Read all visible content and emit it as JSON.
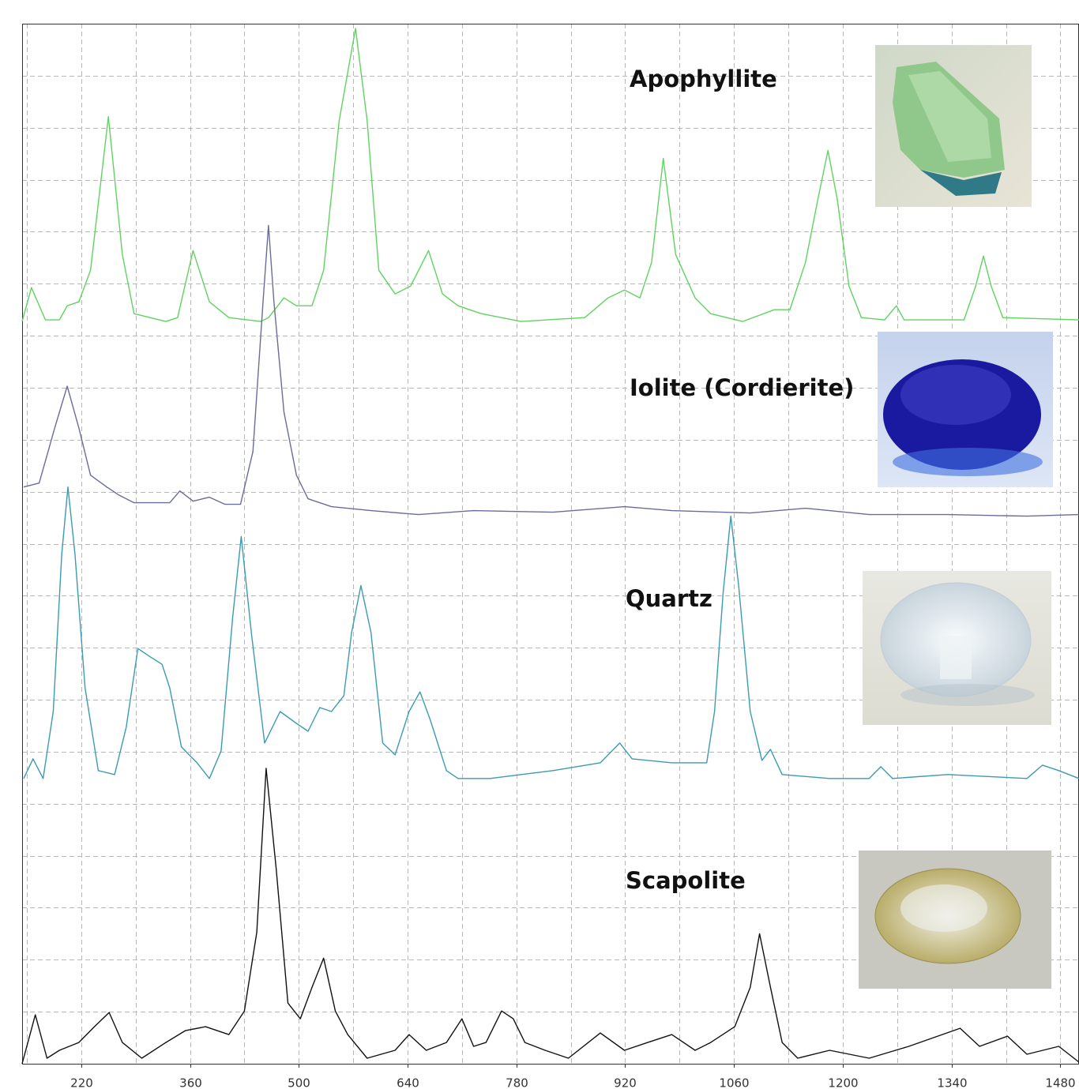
{
  "chart_data": {
    "type": "line",
    "xlim": [
      144,
      1504
    ],
    "xticks": [
      220,
      360,
      500,
      640,
      780,
      920,
      1060,
      1200,
      1340,
      1480
    ],
    "xminor": [
      150,
      290,
      430,
      570,
      710,
      850,
      990,
      1130,
      1270,
      1410
    ],
    "ylim": [
      0,
      1320
    ],
    "yticks": [
      0,
      66,
      132,
      198,
      264,
      330,
      396,
      462,
      528,
      594,
      660,
      726,
      792,
      858,
      924,
      990,
      1056,
      1122,
      1188,
      1254,
      1320
    ],
    "grid": true,
    "series": [
      {
        "name": "Apophyllite",
        "color": "#5fd35f",
        "x": [
          144,
          156,
          174,
          192,
          202,
          217,
          232,
          255,
          273,
          288,
          329,
          344,
          364,
          385,
          410,
          451,
          461,
          481,
          497,
          517,
          532,
          552,
          573,
          588,
          603,
          624,
          644,
          667,
          685,
          705,
          735,
          786,
          868,
          898,
          919,
          939,
          954,
          969,
          985,
          1010,
          1030,
          1071,
          1112,
          1132,
          1152,
          1168,
          1181,
          1193,
          1208,
          1224,
          1254,
          1269,
          1279,
          1356,
          1371,
          1381,
          1391,
          1406,
          1504
        ],
        "values": [
          942,
          985,
          944,
          944,
          962,
          967,
          1007,
          1202,
          1027,
          952,
          942,
          947,
          1032,
          967,
          947,
          942,
          947,
          972,
          962,
          962,
          1007,
          1197,
          1314,
          1197,
          1007,
          977,
          987,
          1032,
          977,
          962,
          952,
          942,
          947,
          972,
          982,
          972,
          1017,
          1149,
          1027,
          972,
          952,
          942,
          957,
          957,
          1017,
          1097,
          1159,
          1097,
          987,
          947,
          944,
          962,
          944,
          944,
          987,
          1025,
          987,
          947,
          944
        ]
      },
      {
        "name": "Iolite (Cordierite)",
        "color": "#6b6b9c",
        "x": [
          146,
          166,
          186,
          202,
          217,
          232,
          253,
          268,
          288,
          334,
          347,
          364,
          385,
          405,
          425,
          441,
          454,
          461,
          468,
          481,
          497,
          512,
          542,
          593,
          654,
          725,
          827,
          919,
          980,
          1081,
          1152,
          1234,
          1335,
          1437,
          1504
        ],
        "values": [
          732,
          737,
          807,
          860,
          807,
          747,
          732,
          722,
          712,
          712,
          727,
          714,
          719,
          710,
          710,
          777,
          967,
          1064,
          967,
          827,
          747,
          717,
          707,
          702,
          697,
          702,
          700,
          707,
          702,
          699,
          705,
          697,
          697,
          695,
          697
        ]
      },
      {
        "name": "Quartz",
        "color": "#3b9bb0",
        "x": [
          146,
          158,
          171,
          184,
          195,
          203,
          212,
          225,
          242,
          263,
          278,
          293,
          308,
          324,
          334,
          349,
          369,
          385,
          400,
          415,
          426,
          439,
          456,
          476,
          497,
          512,
          527,
          542,
          558,
          568,
          580,
          593,
          608,
          624,
          642,
          656,
          669,
          690,
          705,
          746,
          827,
          888,
          913,
          929,
          980,
          1025,
          1035,
          1046,
          1056,
          1066,
          1081,
          1096,
          1107,
          1122,
          1183,
          1234,
          1249,
          1264,
          1335,
          1437,
          1457,
          1478,
          1504
        ],
        "values": [
          362,
          387,
          362,
          447,
          647,
          732,
          647,
          477,
          372,
          367,
          427,
          527,
          517,
          507,
          477,
          402,
          382,
          362,
          397,
          567,
          669,
          547,
          407,
          447,
          432,
          422,
          452,
          447,
          467,
          547,
          607,
          547,
          407,
          392,
          447,
          472,
          437,
          372,
          362,
          362,
          372,
          382,
          407,
          387,
          382,
          382,
          447,
          597,
          695,
          607,
          447,
          385,
          399,
          367,
          362,
          362,
          377,
          362,
          367,
          362,
          379,
          372,
          362
        ]
      },
      {
        "name": "Scapolite",
        "color": "#111111",
        "x": [
          144,
          161,
          176,
          192,
          217,
          237,
          256,
          273,
          298,
          329,
          354,
          380,
          410,
          430,
          446,
          458,
          471,
          486,
          502,
          517,
          532,
          547,
          563,
          588,
          624,
          642,
          664,
          690,
          710,
          725,
          741,
          761,
          776,
          791,
          817,
          847,
          888,
          919,
          949,
          980,
          1010,
          1030,
          1061,
          1081,
          1093,
          1107,
          1122,
          1142,
          1183,
          1234,
          1285,
          1351,
          1376,
          1412,
          1437,
          1478,
          1504
        ],
        "values": [
          0,
          62,
          7,
          17,
          27,
          47,
          65,
          27,
          7,
          27,
          42,
          47,
          37,
          67,
          167,
          375,
          247,
          77,
          57,
          97,
          134,
          67,
          37,
          7,
          17,
          37,
          17,
          27,
          57,
          22,
          27,
          67,
          57,
          27,
          17,
          7,
          39,
          17,
          27,
          37,
          17,
          27,
          47,
          97,
          165,
          97,
          27,
          7,
          17,
          7,
          22,
          45,
          22,
          35,
          12,
          22,
          2
        ]
      }
    ]
  }
}
